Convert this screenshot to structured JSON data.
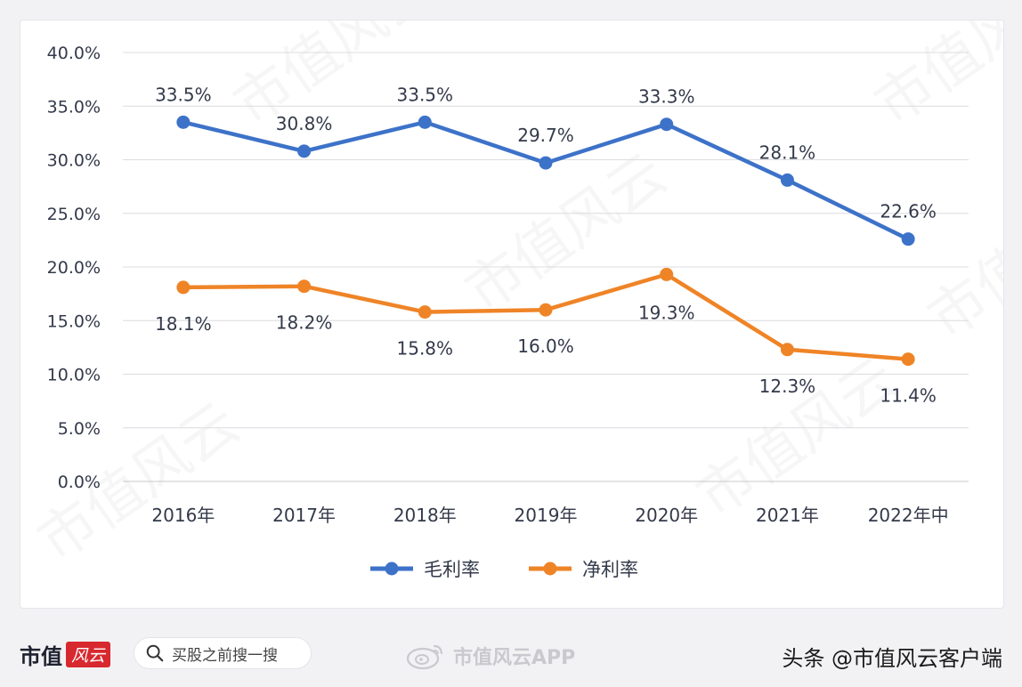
{
  "chart_data": {
    "type": "line",
    "categories": [
      "2016年",
      "2017年",
      "2018年",
      "2019年",
      "2020年",
      "2021年",
      "2022年中"
    ],
    "ylim": [
      0,
      40
    ],
    "yticks": [
      "0.0%",
      "5.0%",
      "10.0%",
      "15.0%",
      "20.0%",
      "25.0%",
      "30.0%",
      "35.0%",
      "40.0%"
    ],
    "grid": true,
    "legend_position": "bottom",
    "series": [
      {
        "name": "毛利率",
        "color": "#3d72c9",
        "values": [
          33.5,
          30.8,
          33.5,
          29.7,
          33.3,
          28.1,
          22.6
        ],
        "labels": [
          "33.5%",
          "30.8%",
          "33.5%",
          "29.7%",
          "33.3%",
          "28.1%",
          "22.6%"
        ]
      },
      {
        "name": "净利率",
        "color": "#ef8427",
        "values": [
          18.1,
          18.2,
          15.8,
          16.0,
          19.3,
          12.3,
          11.4
        ],
        "labels": [
          "18.1%",
          "18.2%",
          "15.8%",
          "16.0%",
          "19.3%",
          "12.3%",
          "11.4%"
        ]
      }
    ]
  },
  "footer": {
    "brand": "市值",
    "brand_badge": "风云",
    "search_text": "买股之前搜一搜",
    "weibo_text": "市值风云APP",
    "toutiao_text": "头条 @市值风云客户端"
  },
  "watermark_text": "市值风云"
}
